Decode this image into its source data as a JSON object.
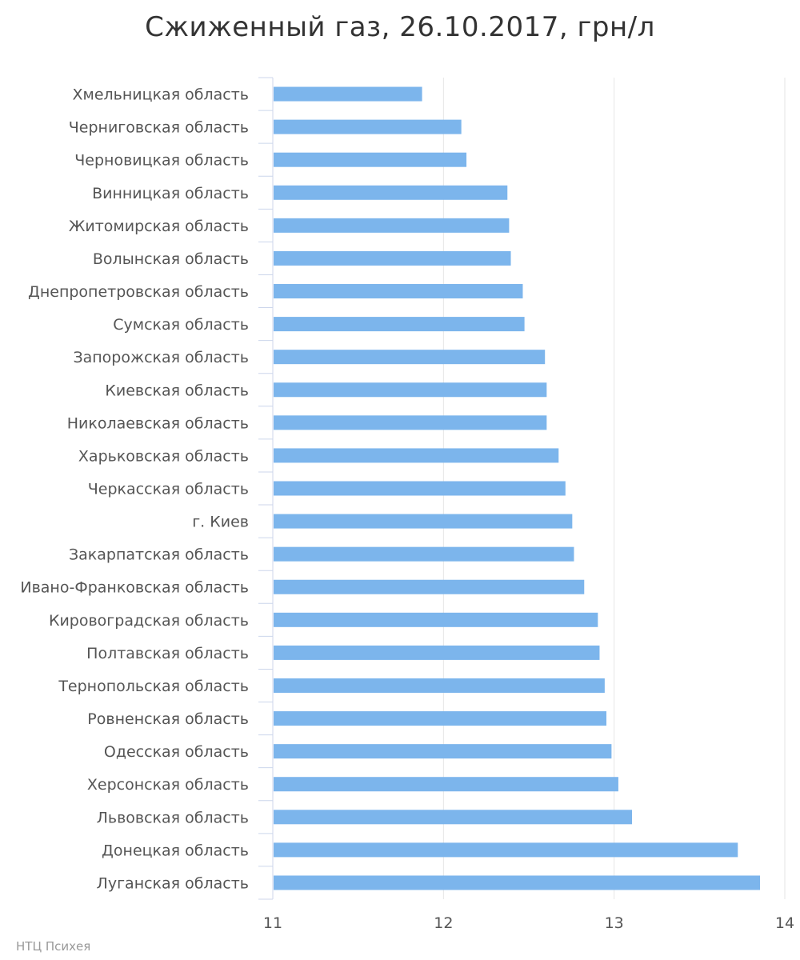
{
  "chart_data": {
    "type": "bar",
    "orientation": "horizontal",
    "title": "Сжиженный газ, 26.10.2017, грн/л",
    "xlabel": "",
    "ylabel": "",
    "categories": [
      "Хмельницкая область",
      "Черниговская область",
      "Черновицкая область",
      "Винницкая область",
      "Житомирская область",
      "Волынская область",
      "Днепропетровская область",
      "Сумская область",
      "Запорожская область",
      "Киевская область",
      "Николаевская область",
      "Харьковская область",
      "Черкасская область",
      "г. Киев",
      "Закарпатская область",
      "Ивано-Франковская область",
      "Кировоградская область",
      "Полтавская область",
      "Тернопольская область",
      "Ровненская область",
      "Одесская область",
      "Херсонская область",
      "Львовская область",
      "Донецкая область",
      "Луганская область"
    ],
    "values": [
      11.87,
      12.1,
      12.13,
      12.37,
      12.38,
      12.39,
      12.46,
      12.47,
      12.59,
      12.6,
      12.6,
      12.67,
      12.71,
      12.75,
      12.76,
      12.82,
      12.9,
      12.91,
      12.94,
      12.95,
      12.98,
      13.02,
      13.1,
      13.72,
      13.85
    ],
    "xlim": [
      11,
      14
    ],
    "xticks": [
      "11",
      "12",
      "13",
      "14"
    ],
    "grid": true,
    "legend": "none",
    "bar_color": "#7cb5ec"
  },
  "credit": "НТЦ Психея"
}
